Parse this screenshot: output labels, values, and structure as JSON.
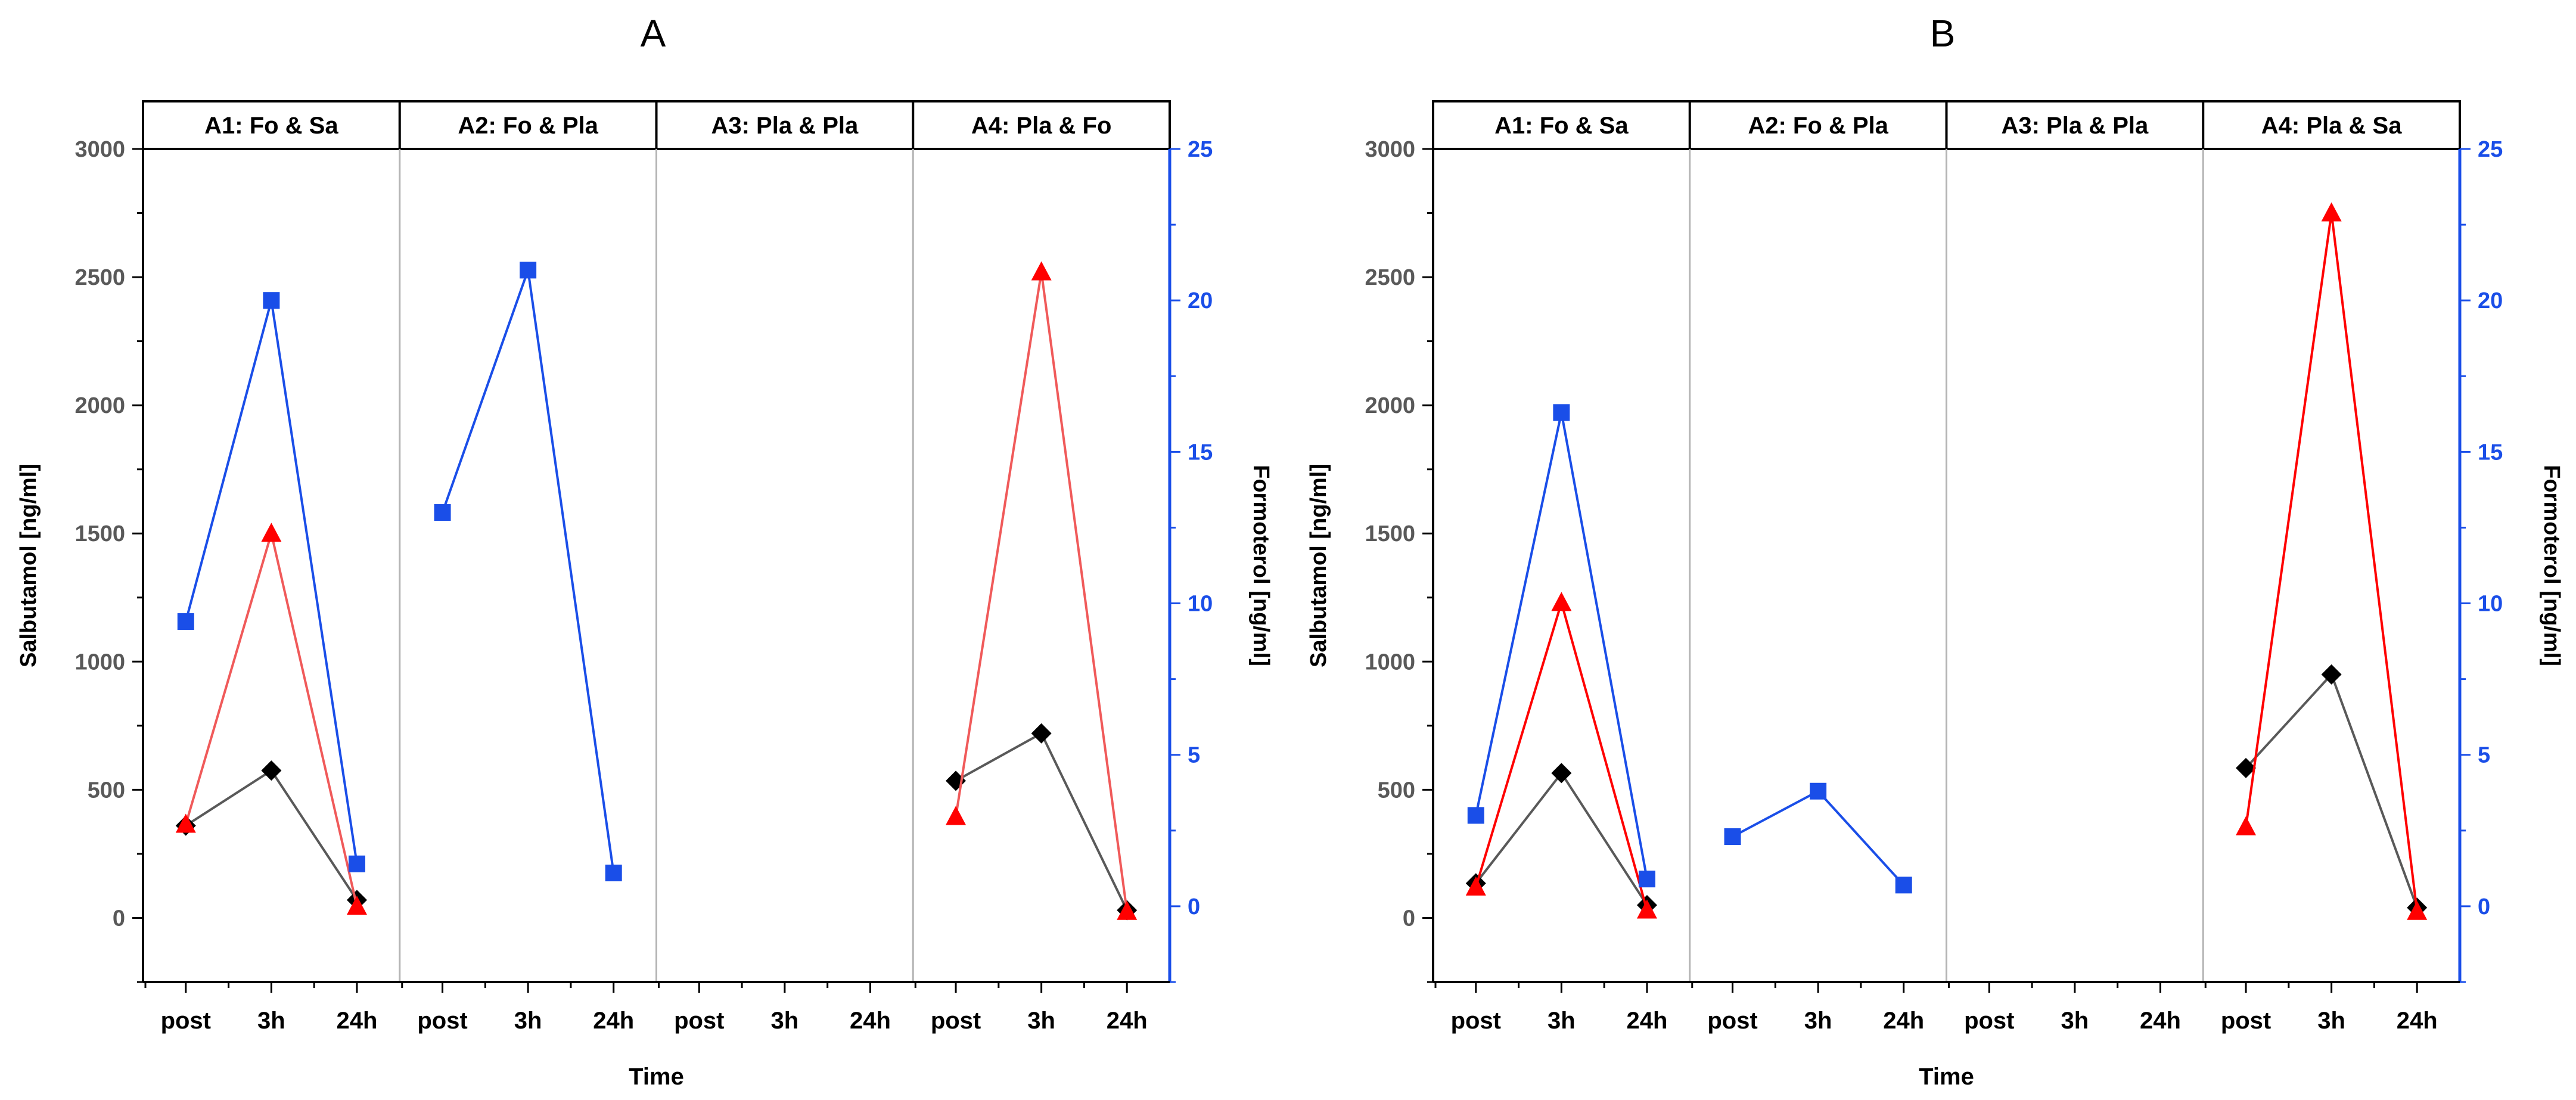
{
  "chart_data": [
    {
      "type": "line",
      "panel_label": "A",
      "facets": [
        "A1: Fo & Sa",
        "A2: Fo & Pla",
        "A3: Pla & Pla",
        "A4: Pla & Fo"
      ],
      "categories": [
        "post",
        "3h",
        "24h"
      ],
      "xlabel": "Time",
      "ylabel_left": "Salbutamol [ng/ml]",
      "ylabel_right": "Formoterol [ng/ml]",
      "ylim_left": [
        -250,
        3000
      ],
      "ylim_right": [
        -2.5,
        25
      ],
      "yticks_left": [
        0,
        500,
        1000,
        1500,
        2000,
        2500,
        3000
      ],
      "yticks_right": [
        0,
        5,
        10,
        15,
        20,
        25
      ],
      "series": [
        {
          "name": "Salbutamol (black diamonds)",
          "axis": "left",
          "color": "#000000",
          "line_color": "#595959",
          "marker": "diamond",
          "values": [
            [
              360,
              575,
              70
            ],
            null,
            null,
            [
              535,
              720,
              30
            ]
          ]
        },
        {
          "name": "Salbutamol (red triangles)",
          "axis": "left",
          "color": "#ff0000",
          "line_color": "#f05a5a",
          "marker": "triangle",
          "values": [
            [
              365,
              1500,
              45
            ],
            null,
            null,
            [
              395,
              2520,
              25
            ]
          ]
        },
        {
          "name": "Formoterol (blue squares)",
          "axis": "right",
          "color": "#1a4ee8",
          "line_color": "#1a4ee8",
          "marker": "square",
          "values": [
            [
              9.4,
              20.0,
              1.4
            ],
            [
              13.0,
              21.0,
              1.1
            ],
            null,
            null
          ]
        }
      ]
    },
    {
      "type": "line",
      "panel_label": "B",
      "facets": [
        "A1: Fo & Sa",
        "A2: Fo & Pla",
        "A3: Pla & Pla",
        "A4: Pla & Sa"
      ],
      "categories": [
        "post",
        "3h",
        "24h"
      ],
      "xlabel": "Time",
      "ylabel_left": "Salbutamol [ng/ml]",
      "ylabel_right": "Formoterol [ng/ml]",
      "ylim_left": [
        -250,
        3000
      ],
      "ylim_right": [
        -2.5,
        25
      ],
      "yticks_left": [
        0,
        500,
        1000,
        1500,
        2000,
        2500,
        3000
      ],
      "yticks_right": [
        0,
        5,
        10,
        15,
        20,
        25
      ],
      "series": [
        {
          "name": "Salbutamol (black diamonds)",
          "axis": "left",
          "color": "#000000",
          "line_color": "#595959",
          "marker": "diamond",
          "values": [
            [
              135,
              565,
              50
            ],
            null,
            null,
            [
              585,
              950,
              40
            ]
          ]
        },
        {
          "name": "Salbutamol (red triangles)",
          "axis": "left",
          "color": "#ff0000",
          "line_color": "#ff0000",
          "marker": "triangle",
          "values": [
            [
              120,
              1230,
              30
            ],
            null,
            null,
            [
              355,
              2750,
              25
            ]
          ]
        },
        {
          "name": "Formoterol (blue squares)",
          "axis": "right",
          "color": "#1a4ee8",
          "line_color": "#1a4ee8",
          "marker": "square",
          "values": [
            [
              3.0,
              16.3,
              0.9
            ],
            [
              2.3,
              3.8,
              0.7
            ],
            null,
            null
          ]
        }
      ]
    }
  ]
}
